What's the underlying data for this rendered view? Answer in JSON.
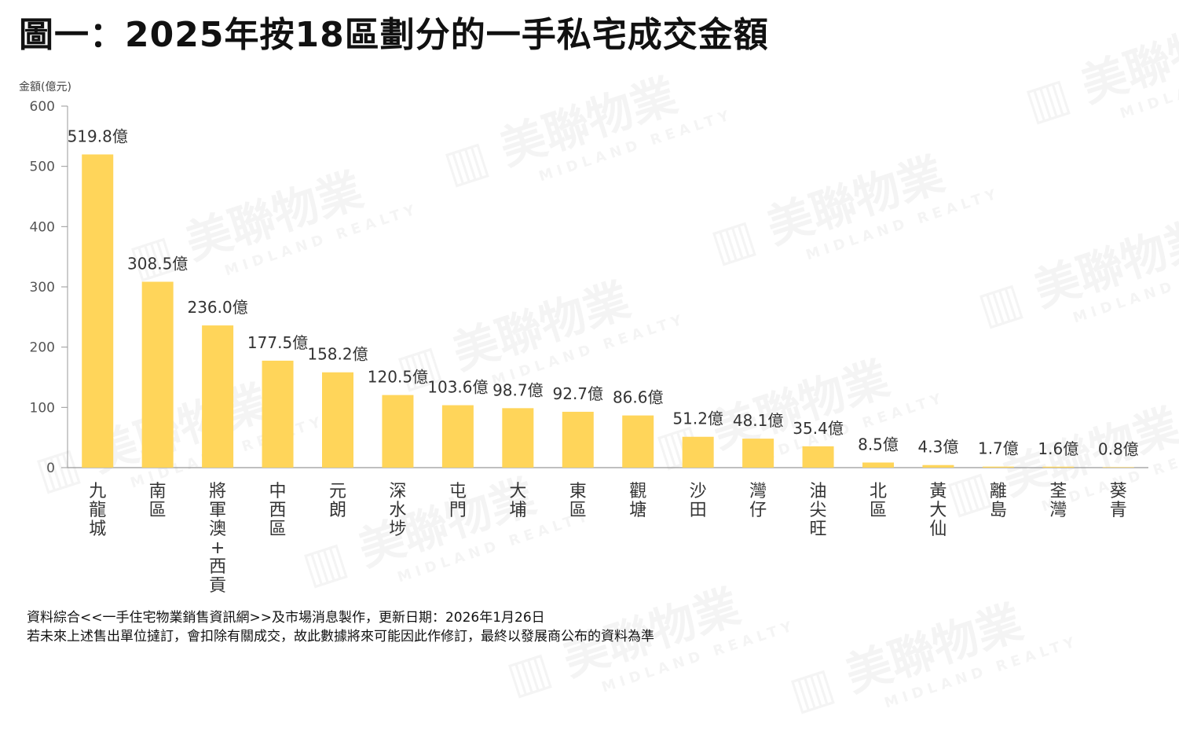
{
  "title": "圖一：2025年按18區劃分的一手私宅成交金額",
  "watermark_text": "美聯物業",
  "watermark_subtext": "MIDLAND REALTY",
  "footer": {
    "line1": "資料綜合<<一手住宅物業銷售資訊網>>及市場消息製作，更新日期：2026年1月26日",
    "line2": "若未來上述售出單位撻訂，會扣除有關成交，故此數據將來可能因此作修訂，最終以發展商公布的資料為準"
  },
  "colors": {
    "bar": "#FFD55A",
    "axis": "#999999",
    "text": "#333333"
  },
  "chart_data": {
    "type": "bar",
    "ylabel": "金額(億元)",
    "ylim": [
      0,
      600
    ],
    "yticks": [
      0,
      100,
      200,
      300,
      400,
      500,
      600
    ],
    "grid": false,
    "categories": [
      "九龍城",
      "南區",
      "將軍澳+西貢",
      "中西區",
      "元朗",
      "深水埗",
      "屯門",
      "大埔",
      "東區",
      "觀塘",
      "沙田",
      "灣仔",
      "油尖旺",
      "北區",
      "黃大仙",
      "離島",
      "荃灣",
      "葵青"
    ],
    "values": [
      519.8,
      308.5,
      236.0,
      177.5,
      158.2,
      120.5,
      103.6,
      98.7,
      92.7,
      86.6,
      51.2,
      48.1,
      35.4,
      8.5,
      4.3,
      1.7,
      1.6,
      0.8
    ],
    "data_labels": [
      "519.8億",
      "308.5億",
      "236.0億",
      "177.5億",
      "158.2億",
      "120.5億",
      "103.6億",
      "98.7億",
      "92.7億",
      "86.6億",
      "51.2億",
      "48.1億",
      "35.4億",
      "8.5億",
      "4.3億",
      "1.7億",
      "1.6億",
      "0.8億"
    ]
  }
}
